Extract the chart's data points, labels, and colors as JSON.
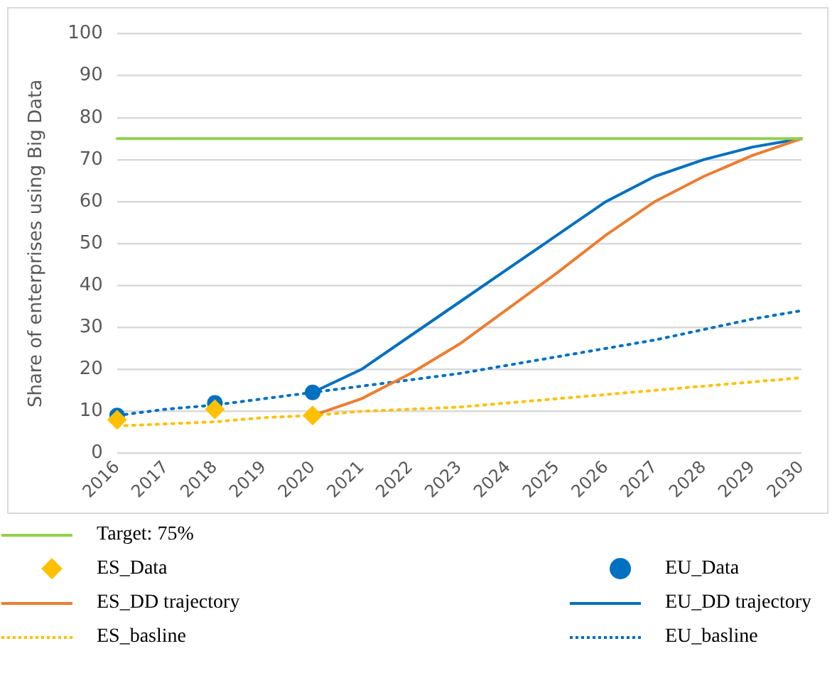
{
  "chart_data": {
    "type": "line",
    "ylabel": "Share of enterprises using Big Data",
    "categories": [
      "2016",
      "2017",
      "2018",
      "2019",
      "2020",
      "2021",
      "2022",
      "2023",
      "2024",
      "2025",
      "2026",
      "2027",
      "2028",
      "2029",
      "2030"
    ],
    "ylim": [
      0,
      100
    ],
    "yticks": [
      0,
      10,
      20,
      30,
      40,
      50,
      60,
      70,
      80,
      90,
      100
    ],
    "grid": "y",
    "legend": "bottom",
    "series": [
      {
        "name": "Target: 75%",
        "type": "line",
        "color": "#92d050",
        "line_style": "solid",
        "marker": "none",
        "values": [
          75,
          75,
          75,
          75,
          75,
          75,
          75,
          75,
          75,
          75,
          75,
          75,
          75,
          75,
          75
        ]
      },
      {
        "name": "ES_Data",
        "type": "scatter",
        "color": "#ffc000",
        "marker": "diamond",
        "values": [
          8,
          null,
          10.5,
          null,
          9,
          null,
          null,
          null,
          null,
          null,
          null,
          null,
          null,
          null,
          null
        ]
      },
      {
        "name": "EU_Data",
        "type": "scatter",
        "color": "#0070c0",
        "marker": "circle",
        "values": [
          9,
          null,
          12,
          null,
          14.5,
          null,
          null,
          null,
          null,
          null,
          null,
          null,
          null,
          null,
          null
        ]
      },
      {
        "name": "ES_DD trajectory",
        "type": "line",
        "color": "#ed7d31",
        "line_style": "solid",
        "marker": "none",
        "values": [
          null,
          null,
          null,
          null,
          9,
          13,
          19,
          26,
          34.5,
          43,
          52,
          60,
          66,
          71,
          75
        ]
      },
      {
        "name": "EU_DD trajectory",
        "type": "line",
        "color": "#0070c0",
        "line_style": "solid",
        "marker": "none",
        "values": [
          null,
          null,
          null,
          null,
          14.5,
          20,
          28,
          36,
          44,
          52,
          60,
          66,
          70,
          73,
          75
        ]
      },
      {
        "name": "ES_basline",
        "type": "line",
        "color": "#ffc000",
        "line_style": "dotted",
        "marker": "none",
        "values": [
          6.5,
          7,
          7.5,
          8.5,
          9,
          10,
          10.5,
          11,
          12,
          13,
          14,
          15,
          16,
          17,
          18
        ]
      },
      {
        "name": "EU_basline",
        "type": "line",
        "color": "#0070c0",
        "line_style": "dotted",
        "marker": "none",
        "values": [
          9,
          10.5,
          11.5,
          13,
          14.5,
          16,
          17.5,
          19,
          21,
          23,
          25,
          27,
          29.5,
          32,
          34
        ]
      }
    ]
  }
}
